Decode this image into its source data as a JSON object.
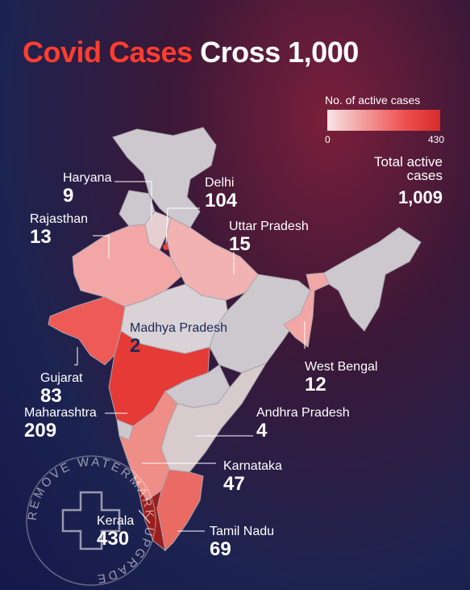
{
  "title": {
    "part1": "Covid Cases",
    "part2": "Cross 1,000"
  },
  "legend": {
    "title": "No. of active cases",
    "min": "0",
    "max": "430"
  },
  "total": {
    "label": "Total active cases",
    "value": "1,009"
  },
  "states": {
    "haryana": {
      "name": "Haryana",
      "value": "9"
    },
    "delhi": {
      "name": "Delhi",
      "value": "104"
    },
    "rajasthan": {
      "name": "Rajasthan",
      "value": "13"
    },
    "uttar_pradesh": {
      "name": "Uttar Pradesh",
      "value": "15"
    },
    "madhya_pradesh": {
      "name": "Madhya Pradesh",
      "value": "2"
    },
    "west_bengal": {
      "name": "West Bengal",
      "value": "12"
    },
    "gujarat": {
      "name": "Gujarat",
      "value": "83"
    },
    "maharashtra": {
      "name": "Maharashtra",
      "value": "209"
    },
    "andhra_pradesh": {
      "name": "Andhra Pradesh",
      "value": "4"
    },
    "karnataka": {
      "name": "Karnataka",
      "value": "47"
    },
    "kerala": {
      "name": "Kerala",
      "value": "430"
    },
    "tamil_nadu": {
      "name": "Tamil Nadu",
      "value": "69"
    }
  },
  "colors": {
    "title_accent": "#ff3d2e",
    "no_data": "#cdc8ce",
    "scale_low": "#f4e6e6",
    "scale_high": "#d62b2b",
    "kerala": "#9a1f1f"
  },
  "watermark": {
    "text": "REMOVE WATERMARK UPGRADE"
  }
}
